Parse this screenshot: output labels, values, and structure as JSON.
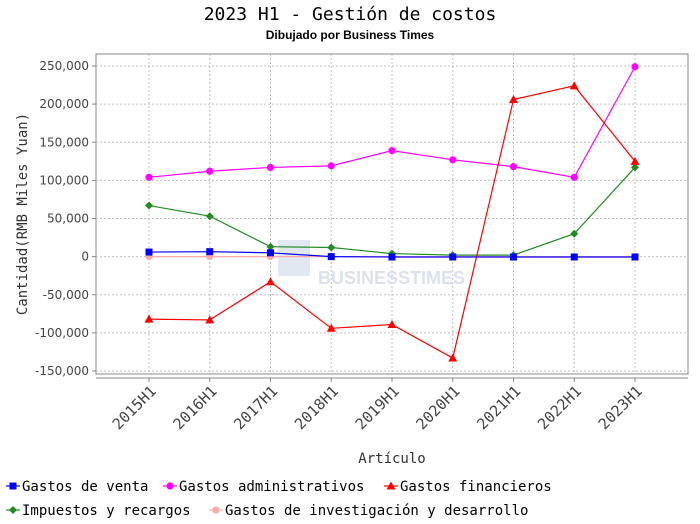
{
  "chart_data": {
    "type": "line",
    "title": "2023 H1 - Gestión de costos",
    "subtitle": "Dibujado por Business Times",
    "xlabel": "Artículo",
    "ylabel": "Cantidad(RMB Miles Yuan)",
    "categories": [
      "2015H1",
      "2016H1",
      "2017H1",
      "2018H1",
      "2019H1",
      "2020H1",
      "2021H1",
      "2022H1",
      "2023H1"
    ],
    "ylim": [
      -150000,
      260000
    ],
    "yticks": [
      -150000,
      -100000,
      -50000,
      0,
      50000,
      100000,
      150000,
      200000,
      250000
    ],
    "ytick_labels": [
      "-150,000",
      "-100,000",
      "-50,000",
      "0",
      "50,000",
      "100,000",
      "150,000",
      "200,000",
      "250,000"
    ],
    "grid": true,
    "legend_position": "bottom",
    "watermark": "BUSINESSTIMES",
    "series": [
      {
        "name": "Gastos de venta",
        "color": "#0000ff",
        "marker": "square",
        "values": [
          6000,
          6500,
          5000,
          0,
          -500,
          -500,
          -500,
          -500,
          -500
        ]
      },
      {
        "name": "Gastos administrativos",
        "color": "#ff00ff",
        "marker": "circle",
        "values": [
          104000,
          112000,
          117000,
          119000,
          139000,
          127000,
          118000,
          104000,
          249000
        ]
      },
      {
        "name": "Gastos financieros",
        "color": "#ff0000",
        "marker": "triangle",
        "values": [
          -82000,
          -83000,
          -33000,
          -94000,
          -89000,
          -133000,
          206000,
          224000,
          125000
        ]
      },
      {
        "name": "Impuestos y recargos",
        "color": "#228b22",
        "marker": "diamond",
        "values": [
          67000,
          53000,
          13000,
          12000,
          4000,
          2000,
          2000,
          30000,
          117000
        ]
      },
      {
        "name": "Gastos de investigación y desarrollo",
        "color": "#ffaaaa",
        "marker": "circle",
        "values": [
          0,
          0,
          0,
          0,
          0,
          0,
          0,
          0,
          0
        ]
      }
    ]
  }
}
